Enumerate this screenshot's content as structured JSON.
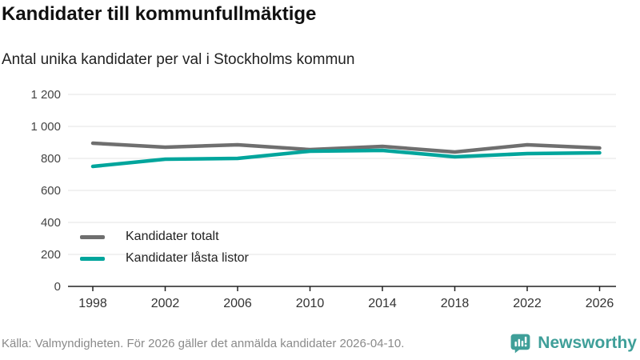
{
  "header": {
    "title": "Kandidater till kommunfullmäktige",
    "subtitle": "Antal unika kandidater per val i Stockholms kommun"
  },
  "chart_data": {
    "type": "line",
    "x": [
      1998,
      2002,
      2006,
      2010,
      2014,
      2018,
      2022,
      2026
    ],
    "x_tick_labels": [
      "1998",
      "2002",
      "2006",
      "2010",
      "2014",
      "2018",
      "2022",
      "2026"
    ],
    "series": [
      {
        "name": "Kandidater totalt",
        "color": "#6f6f6f",
        "values": [
          895,
          870,
          885,
          855,
          875,
          840,
          885,
          865
        ]
      },
      {
        "name": "Kandidater låsta listor",
        "color": "#00a59c",
        "values": [
          750,
          795,
          800,
          845,
          850,
          810,
          830,
          835
        ]
      }
    ],
    "ylim": [
      0,
      1200
    ],
    "y_ticks": [
      {
        "value": 0,
        "label": "0"
      },
      {
        "value": 200,
        "label": "200"
      },
      {
        "value": 400,
        "label": "400"
      },
      {
        "value": 600,
        "label": "600"
      },
      {
        "value": 800,
        "label": "800"
      },
      {
        "value": 1000,
        "label": "1 000"
      },
      {
        "value": 1200,
        "label": "1 200"
      }
    ],
    "grid": true,
    "legend_position": "inside-left"
  },
  "colors": {
    "grid": "#e3e3e3",
    "axis": "#222222",
    "axis_text": "#444444",
    "logo_teal": "#3f9f99"
  },
  "footer": {
    "source": "Källa: Valmyndigheten. För 2026 gäller det anmälda kandidater 2026-04-10."
  },
  "logo": {
    "text": "Newsworthy",
    "icon": "newsworthy-bubble-chart-icon"
  }
}
